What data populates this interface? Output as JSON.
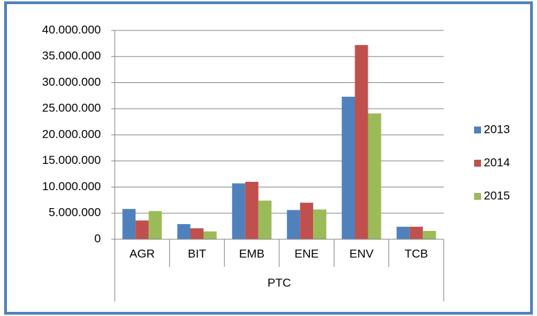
{
  "chart_data": {
    "type": "bar",
    "categories": [
      "AGR",
      "BIT",
      "EMB",
      "ENE",
      "ENV",
      "TCB"
    ],
    "group_label": "PTC",
    "series": [
      {
        "name": "2013",
        "color": "#4f81bd",
        "values": [
          5800000,
          2900000,
          10700000,
          5600000,
          27300000,
          2400000
        ]
      },
      {
        "name": "2014",
        "color": "#c0504d",
        "values": [
          3600000,
          2100000,
          11000000,
          7000000,
          37200000,
          2400000
        ]
      },
      {
        "name": "2015",
        "color": "#9bbb59",
        "values": [
          5400000,
          1500000,
          7400000,
          5700000,
          24100000,
          1600000
        ]
      }
    ],
    "ylim": [
      0,
      40000000
    ],
    "yticks": [
      0,
      {
        "value": 5000000,
        "label": "5.000.000"
      },
      {
        "value": 10000000,
        "label": "10.000.000"
      },
      {
        "value": 15000000,
        "label": "15.000.000"
      },
      {
        "value": 20000000,
        "label": "20.000.000"
      },
      {
        "value": 25000000,
        "label": "25.000.000"
      },
      {
        "value": 30000000,
        "label": "30.000.000"
      },
      {
        "value": 35000000,
        "label": "35.000.000"
      },
      {
        "value": 40000000,
        "label": "40.000.000"
      }
    ],
    "grid": true,
    "legend": "right"
  }
}
